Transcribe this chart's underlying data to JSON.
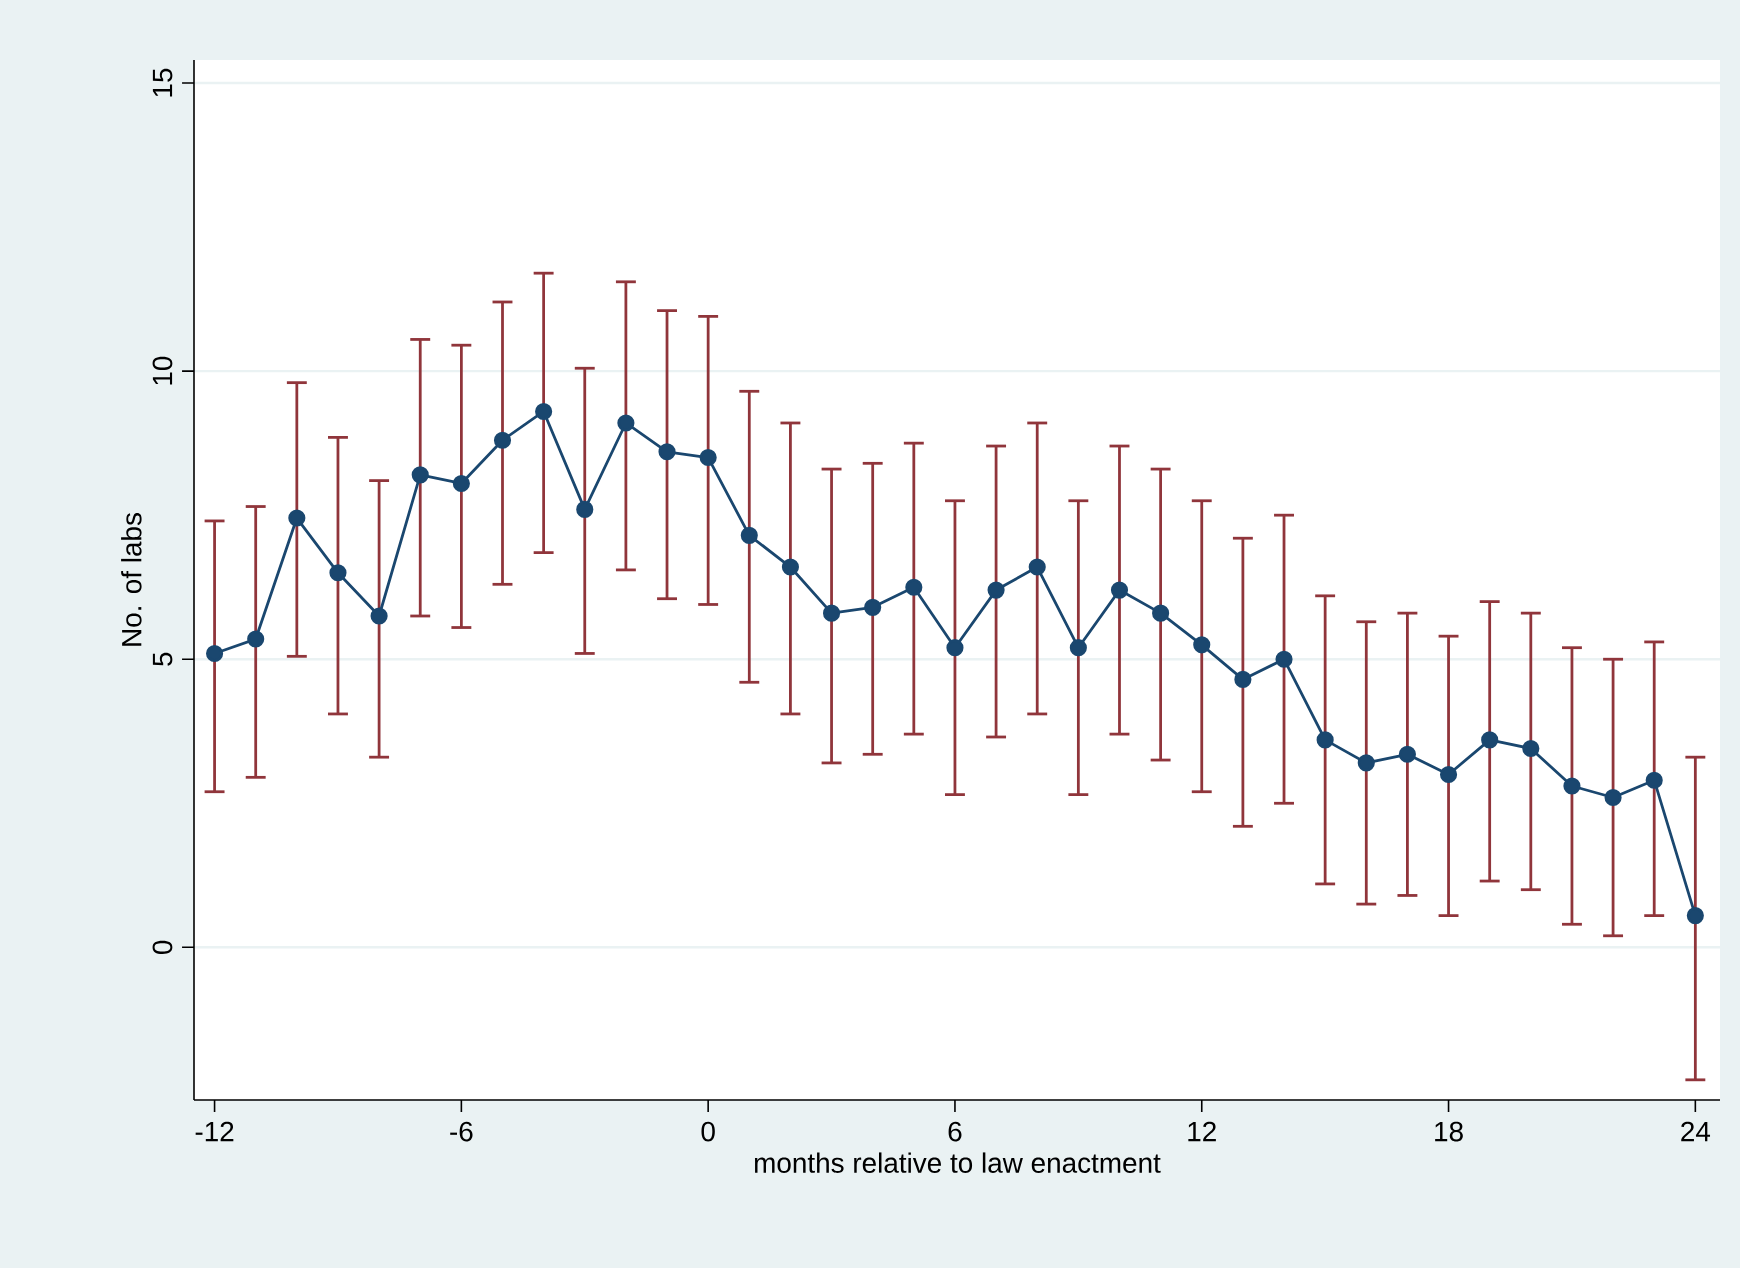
{
  "chart_data": {
    "type": "line",
    "xlabel": "months relative to law enactment",
    "ylabel": "No. of labs",
    "x": [
      -12,
      -11,
      -10,
      -9,
      -8,
      -7,
      -6,
      -5,
      -4,
      -3,
      -2,
      -1,
      0,
      1,
      2,
      3,
      4,
      5,
      6,
      7,
      8,
      9,
      10,
      11,
      12,
      13,
      14,
      15,
      16,
      17,
      18,
      19,
      20,
      21,
      22,
      23,
      24
    ],
    "series": [
      {
        "color": "#1a476f",
        "values": [
          5.1,
          5.35,
          7.45,
          6.5,
          5.75,
          8.2,
          8.05,
          8.8,
          9.3,
          7.6,
          9.1,
          8.6,
          8.5,
          7.15,
          6.6,
          5.8,
          5.9,
          6.25,
          5.2,
          6.2,
          6.6,
          5.2,
          6.2,
          5.8,
          5.25,
          4.65,
          5.0,
          3.6,
          3.2,
          3.35,
          3.0,
          3.6,
          3.45,
          2.8,
          2.6,
          2.9,
          0.55
        ],
        "errors": [
          [
            2.7,
            7.4
          ],
          [
            2.95,
            7.65
          ],
          [
            5.05,
            9.8
          ],
          [
            4.05,
            8.85
          ],
          [
            3.3,
            8.1
          ],
          [
            5.75,
            10.55
          ],
          [
            5.55,
            10.45
          ],
          [
            6.3,
            11.2
          ],
          [
            6.85,
            11.7
          ],
          [
            5.1,
            10.05
          ],
          [
            6.55,
            11.55
          ],
          [
            6.05,
            11.05
          ],
          [
            5.95,
            10.95
          ],
          [
            4.6,
            9.65
          ],
          [
            4.05,
            9.1
          ],
          [
            3.2,
            8.3
          ],
          [
            3.35,
            8.4
          ],
          [
            3.7,
            8.75
          ],
          [
            2.65,
            7.75
          ],
          [
            3.65,
            8.7
          ],
          [
            4.05,
            9.1
          ],
          [
            2.65,
            7.75
          ],
          [
            3.7,
            8.7
          ],
          [
            3.25,
            8.3
          ],
          [
            2.7,
            7.75
          ],
          [
            2.1,
            7.1
          ],
          [
            2.5,
            7.5
          ],
          [
            1.1,
            6.1
          ],
          [
            0.75,
            5.65
          ],
          [
            0.9,
            5.8
          ],
          [
            0.55,
            5.4
          ],
          [
            1.15,
            6.0
          ],
          [
            1.0,
            5.8
          ],
          [
            0.4,
            5.2
          ],
          [
            0.2,
            5.0
          ],
          [
            0.55,
            5.3
          ],
          [
            -2.3,
            3.3
          ]
        ]
      }
    ],
    "marker": "circle",
    "line_style": "solid",
    "grid": "y",
    "xlim": [
      -12.5,
      24.6
    ],
    "ylim": [
      -2.65,
      15.4
    ],
    "xticks": [
      -12,
      -6,
      0,
      6,
      12,
      18,
      24
    ],
    "yticks": [
      0,
      5,
      10,
      15
    ]
  }
}
